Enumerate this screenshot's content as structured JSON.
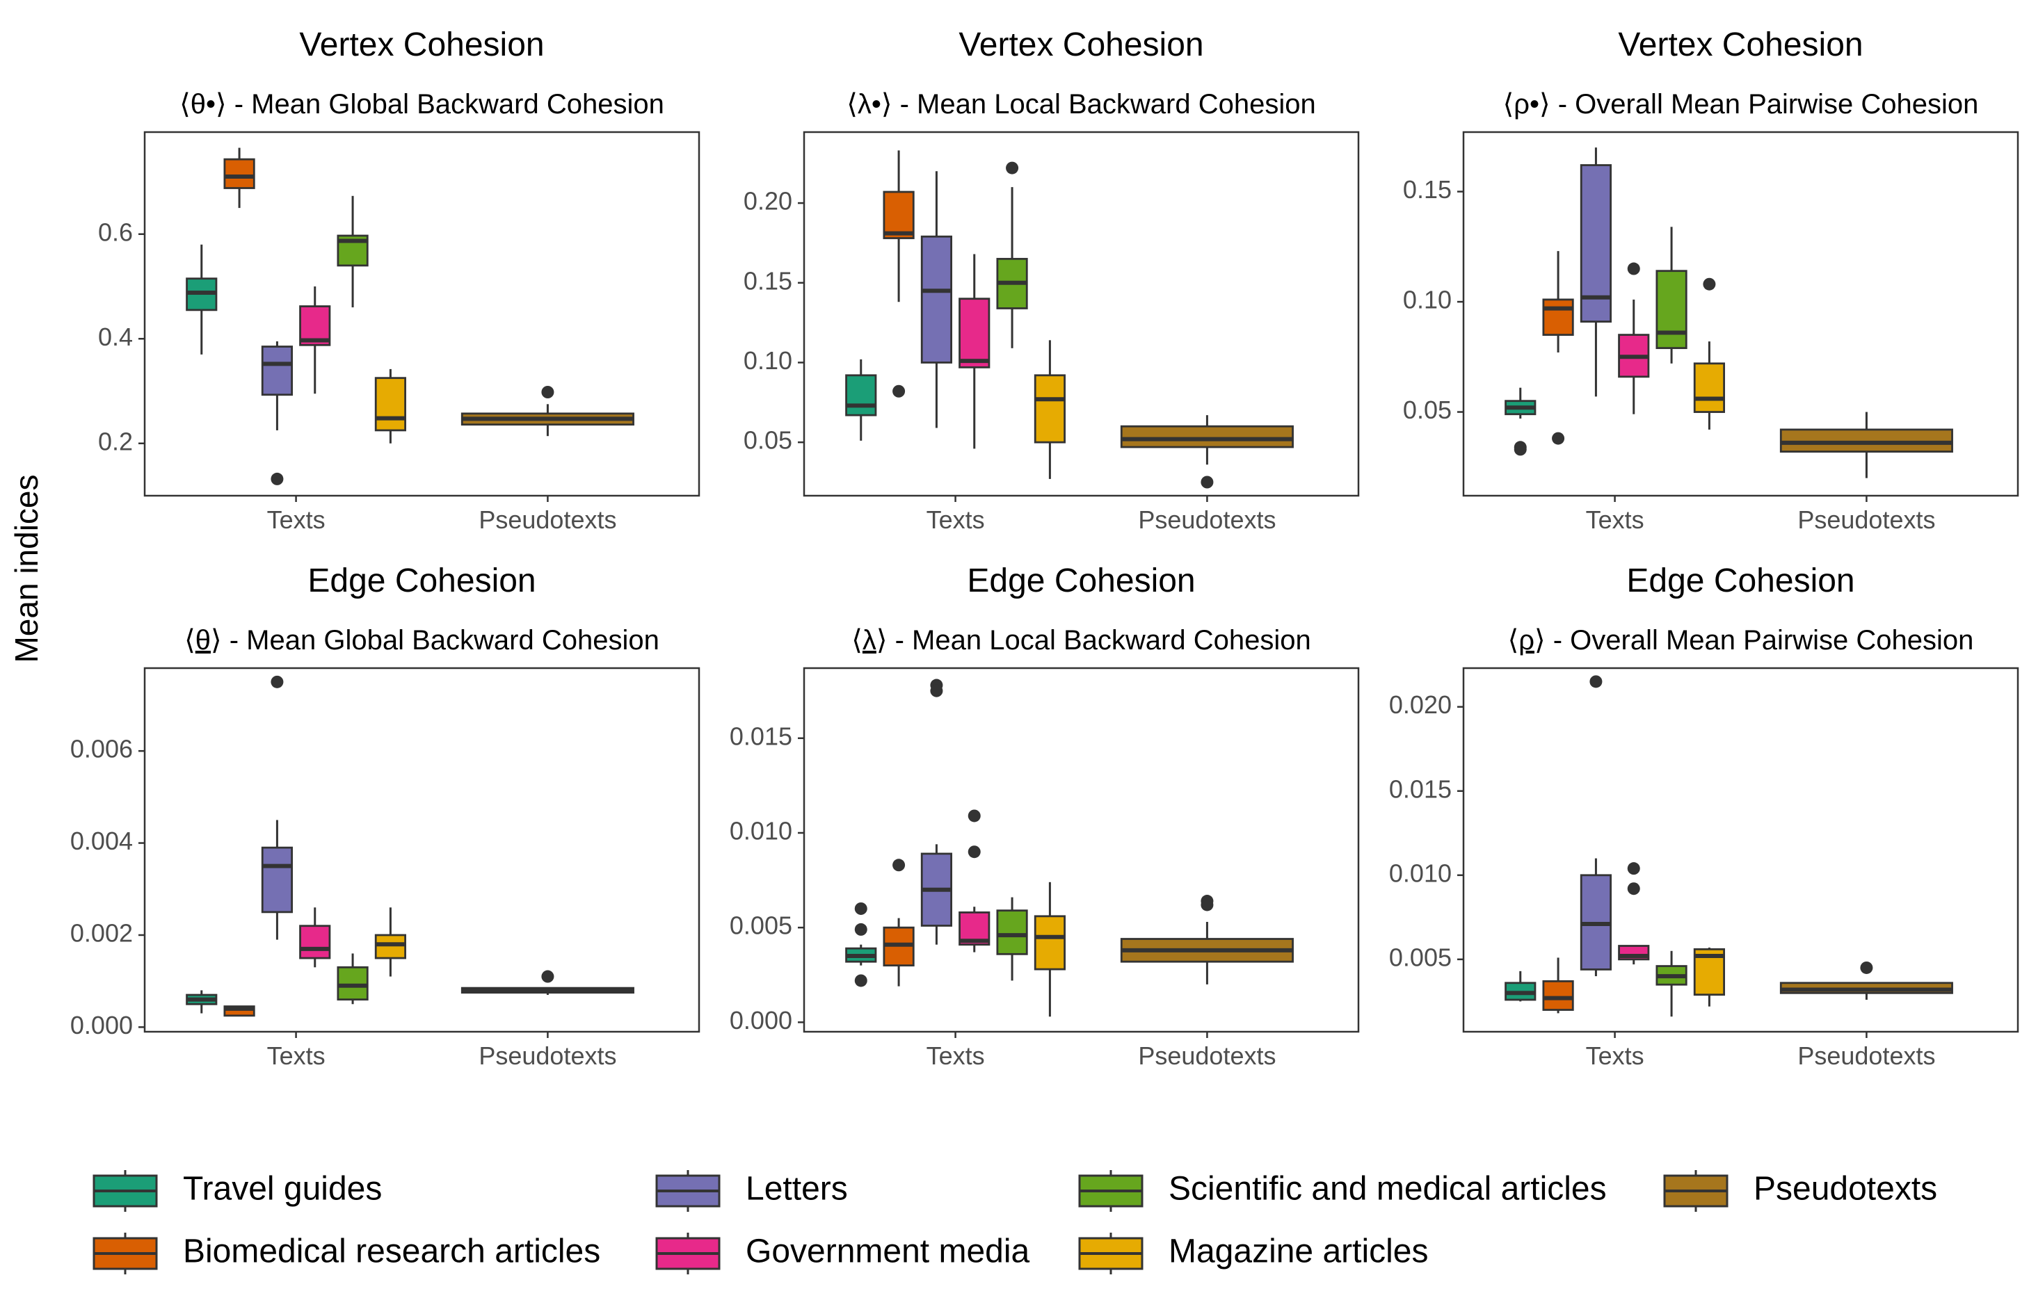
{
  "ylabel": "Mean indices",
  "legend": {
    "placement": "bottom",
    "items": [
      {
        "name": "Travel guides",
        "color": "#1b9e77"
      },
      {
        "name": "Biomedical research articles",
        "color": "#d95f02"
      },
      {
        "name": "Letters",
        "color": "#7570b3"
      },
      {
        "name": "Government media",
        "color": "#e7298a"
      },
      {
        "name": "Scientific and medical articles",
        "color": "#66a61e"
      },
      {
        "name": "Magazine articles",
        "color": "#e6ab02"
      },
      {
        "name": "Pseudotexts",
        "color": "#a6761d"
      }
    ]
  },
  "chart_data": [
    {
      "type": "boxplot",
      "title": "Vertex Cohesion",
      "subtitle": "⟨θ•⟩ - Mean Global Backward Cohesion",
      "categories": [
        "Texts",
        "Pseudotexts"
      ],
      "ylim": [
        0.1,
        0.795
      ],
      "yticks": [
        {
          "value": 0.2,
          "label": "0.2"
        },
        {
          "value": 0.4,
          "label": "0.4"
        },
        {
          "value": 0.6,
          "label": "0.6"
        }
      ],
      "grid": false,
      "series": [
        {
          "name": "Travel guides",
          "category": "Texts",
          "min": 0.37,
          "q1": 0.455,
          "median": 0.488,
          "q3": 0.515,
          "max": 0.58,
          "outliers": []
        },
        {
          "name": "Biomedical research articles",
          "category": "Texts",
          "min": 0.65,
          "q1": 0.688,
          "median": 0.71,
          "q3": 0.743,
          "max": 0.765,
          "outliers": []
        },
        {
          "name": "Letters",
          "category": "Texts",
          "min": 0.225,
          "q1": 0.293,
          "median": 0.352,
          "q3": 0.385,
          "max": 0.395,
          "outliers": [
            0.132
          ]
        },
        {
          "name": "Government media",
          "category": "Texts",
          "min": 0.295,
          "q1": 0.388,
          "median": 0.397,
          "q3": 0.462,
          "max": 0.5,
          "outliers": []
        },
        {
          "name": "Scientific and medical articles",
          "category": "Texts",
          "min": 0.46,
          "q1": 0.54,
          "median": 0.587,
          "q3": 0.597,
          "max": 0.673,
          "outliers": []
        },
        {
          "name": "Magazine articles",
          "category": "Texts",
          "min": 0.2,
          "q1": 0.225,
          "median": 0.248,
          "q3": 0.325,
          "max": 0.342,
          "outliers": []
        },
        {
          "name": "Pseudotexts",
          "category": "Pseudotexts",
          "min": 0.214,
          "q1": 0.236,
          "median": 0.247,
          "q3": 0.257,
          "max": 0.275,
          "outliers": [
            0.298
          ]
        }
      ]
    },
    {
      "type": "boxplot",
      "title": "Vertex Cohesion",
      "subtitle": "⟨λ•⟩ - Mean Local Backward Cohesion",
      "categories": [
        "Texts",
        "Pseudotexts"
      ],
      "ylim": [
        0.0165,
        0.2445
      ],
      "yticks": [
        {
          "value": 0.05,
          "label": "0.05"
        },
        {
          "value": 0.1,
          "label": "0.10"
        },
        {
          "value": 0.15,
          "label": "0.15"
        },
        {
          "value": 0.2,
          "label": "0.20"
        }
      ],
      "grid": false,
      "series": [
        {
          "name": "Travel guides",
          "category": "Texts",
          "min": 0.051,
          "q1": 0.067,
          "median": 0.073,
          "q3": 0.092,
          "max": 0.102,
          "outliers": []
        },
        {
          "name": "Biomedical research articles",
          "category": "Texts",
          "min": 0.138,
          "q1": 0.178,
          "median": 0.181,
          "q3": 0.207,
          "max": 0.233,
          "outliers": [
            0.082
          ]
        },
        {
          "name": "Letters",
          "category": "Texts",
          "min": 0.059,
          "q1": 0.1,
          "median": 0.145,
          "q3": 0.179,
          "max": 0.22,
          "outliers": []
        },
        {
          "name": "Government media",
          "category": "Texts",
          "min": 0.046,
          "q1": 0.097,
          "median": 0.101,
          "q3": 0.14,
          "max": 0.168,
          "outliers": []
        },
        {
          "name": "Scientific and medical articles",
          "category": "Texts",
          "min": 0.109,
          "q1": 0.134,
          "median": 0.15,
          "q3": 0.165,
          "max": 0.21,
          "outliers": [
            0.222
          ]
        },
        {
          "name": "Magazine articles",
          "category": "Texts",
          "min": 0.027,
          "q1": 0.05,
          "median": 0.077,
          "q3": 0.092,
          "max": 0.114,
          "outliers": []
        },
        {
          "name": "Pseudotexts",
          "category": "Pseudotexts",
          "min": 0.036,
          "q1": 0.047,
          "median": 0.052,
          "q3": 0.06,
          "max": 0.067,
          "outliers": [
            0.025
          ]
        }
      ]
    },
    {
      "type": "boxplot",
      "title": "Vertex Cohesion",
      "subtitle": "⟨ρ•⟩ - Overall Mean Pairwise Cohesion",
      "categories": [
        "Texts",
        "Pseudotexts"
      ],
      "ylim": [
        0.012,
        0.177
      ],
      "yticks": [
        {
          "value": 0.05,
          "label": "0.05"
        },
        {
          "value": 0.1,
          "label": "0.10"
        },
        {
          "value": 0.15,
          "label": "0.15"
        }
      ],
      "grid": false,
      "series": [
        {
          "name": "Travel guides",
          "category": "Texts",
          "min": 0.047,
          "q1": 0.049,
          "median": 0.052,
          "q3": 0.055,
          "max": 0.061,
          "outliers": [
            0.034,
            0.033
          ]
        },
        {
          "name": "Biomedical research articles",
          "category": "Texts",
          "min": 0.077,
          "q1": 0.085,
          "median": 0.097,
          "q3": 0.101,
          "max": 0.123,
          "outliers": [
            0.038
          ]
        },
        {
          "name": "Letters",
          "category": "Texts",
          "min": 0.057,
          "q1": 0.091,
          "median": 0.102,
          "q3": 0.162,
          "max": 0.17,
          "outliers": []
        },
        {
          "name": "Government media",
          "category": "Texts",
          "min": 0.049,
          "q1": 0.066,
          "median": 0.075,
          "q3": 0.085,
          "max": 0.101,
          "outliers": [
            0.115
          ]
        },
        {
          "name": "Scientific and medical articles",
          "category": "Texts",
          "min": 0.072,
          "q1": 0.079,
          "median": 0.086,
          "q3": 0.114,
          "max": 0.134,
          "outliers": []
        },
        {
          "name": "Magazine articles",
          "category": "Texts",
          "min": 0.042,
          "q1": 0.05,
          "median": 0.056,
          "q3": 0.072,
          "max": 0.082,
          "outliers": [
            0.108
          ]
        },
        {
          "name": "Pseudotexts",
          "category": "Pseudotexts",
          "min": 0.02,
          "q1": 0.032,
          "median": 0.036,
          "q3": 0.042,
          "max": 0.05,
          "outliers": []
        }
      ]
    },
    {
      "type": "boxplot",
      "title": "Edge Cohesion",
      "subtitle": "⟨θ⟩ - Mean Global Backward Cohesion",
      "subtitle_underline_char": "θ",
      "categories": [
        "Texts",
        "Pseudotexts"
      ],
      "ylim": [
        -0.0001,
        0.0078
      ],
      "yticks": [
        {
          "value": 0,
          "label": "0.000"
        },
        {
          "value": 0.002,
          "label": "0.002"
        },
        {
          "value": 0.004,
          "label": "0.004"
        },
        {
          "value": 0.006,
          "label": "0.006"
        }
      ],
      "grid": false,
      "series": [
        {
          "name": "Travel guides",
          "category": "Texts",
          "min": 0.0003,
          "q1": 0.0005,
          "median": 0.0006,
          "q3": 0.0007,
          "max": 0.0008,
          "outliers": []
        },
        {
          "name": "Biomedical research articles",
          "category": "Texts",
          "min": 0.00025,
          "q1": 0.00025,
          "median": 0.0004,
          "q3": 0.00045,
          "max": 0.00045,
          "outliers": []
        },
        {
          "name": "Letters",
          "category": "Texts",
          "min": 0.0019,
          "q1": 0.0025,
          "median": 0.0035,
          "q3": 0.0039,
          "max": 0.0045,
          "outliers": [
            0.0075
          ]
        },
        {
          "name": "Government media",
          "category": "Texts",
          "min": 0.0013,
          "q1": 0.0015,
          "median": 0.0017,
          "q3": 0.0022,
          "max": 0.0026,
          "outliers": []
        },
        {
          "name": "Scientific and medical articles",
          "category": "Texts",
          "min": 0.0005,
          "q1": 0.0006,
          "median": 0.0009,
          "q3": 0.0013,
          "max": 0.0016,
          "outliers": []
        },
        {
          "name": "Magazine articles",
          "category": "Texts",
          "min": 0.0011,
          "q1": 0.0015,
          "median": 0.0018,
          "q3": 0.002,
          "max": 0.0026,
          "outliers": []
        },
        {
          "name": "Pseudotexts",
          "category": "Pseudotexts",
          "min": 0.0007,
          "q1": 0.00075,
          "median": 0.0008,
          "q3": 0.00085,
          "max": 0.00085,
          "outliers": [
            0.0011
          ]
        }
      ]
    },
    {
      "type": "boxplot",
      "title": "Edge Cohesion",
      "subtitle": "⟨λ⟩ - Mean Local Backward Cohesion",
      "subtitle_underline_char": "λ",
      "categories": [
        "Texts",
        "Pseudotexts"
      ],
      "ylim": [
        -0.0005,
        0.0187
      ],
      "yticks": [
        {
          "value": 0,
          "label": "0.000"
        },
        {
          "value": 0.005,
          "label": "0.005"
        },
        {
          "value": 0.01,
          "label": "0.010"
        },
        {
          "value": 0.015,
          "label": "0.015"
        }
      ],
      "grid": false,
      "series": [
        {
          "name": "Travel guides",
          "category": "Texts",
          "min": 0.003,
          "q1": 0.0032,
          "median": 0.0035,
          "q3": 0.0039,
          "max": 0.0041,
          "outliers": [
            0.006,
            0.0049,
            0.0022
          ]
        },
        {
          "name": "Biomedical research articles",
          "category": "Texts",
          "min": 0.0019,
          "q1": 0.003,
          "median": 0.0041,
          "q3": 0.005,
          "max": 0.0055,
          "outliers": [
            0.0083
          ]
        },
        {
          "name": "Letters",
          "category": "Texts",
          "min": 0.0041,
          "q1": 0.0051,
          "median": 0.007,
          "q3": 0.0089,
          "max": 0.0094,
          "outliers": [
            0.0178,
            0.0175
          ]
        },
        {
          "name": "Government media",
          "category": "Texts",
          "min": 0.0037,
          "q1": 0.0041,
          "median": 0.0043,
          "q3": 0.0058,
          "max": 0.0061,
          "outliers": [
            0.0109,
            0.009
          ]
        },
        {
          "name": "Scientific and medical articles",
          "category": "Texts",
          "min": 0.0022,
          "q1": 0.0036,
          "median": 0.0046,
          "q3": 0.0059,
          "max": 0.0066,
          "outliers": []
        },
        {
          "name": "Magazine articles",
          "category": "Texts",
          "min": 0.0003,
          "q1": 0.0028,
          "median": 0.0045,
          "q3": 0.0056,
          "max": 0.0074,
          "outliers": []
        },
        {
          "name": "Pseudotexts",
          "category": "Pseudotexts",
          "min": 0.002,
          "q1": 0.0032,
          "median": 0.0038,
          "q3": 0.0044,
          "max": 0.0053,
          "outliers": [
            0.0062,
            0.0064
          ]
        }
      ]
    },
    {
      "type": "boxplot",
      "title": "Edge Cohesion",
      "subtitle": "⟨ρ⟩ - Overall Mean Pairwise Cohesion",
      "subtitle_underline_char": "ρ",
      "categories": [
        "Texts",
        "Pseudotexts"
      ],
      "ylim": [
        0.0007,
        0.0223
      ],
      "yticks": [
        {
          "value": 0.005,
          "label": "0.005"
        },
        {
          "value": 0.01,
          "label": "0.010"
        },
        {
          "value": 0.015,
          "label": "0.015"
        },
        {
          "value": 0.02,
          "label": "0.020"
        }
      ],
      "grid": false,
      "series": [
        {
          "name": "Travel guides",
          "category": "Texts",
          "min": 0.0025,
          "q1": 0.0026,
          "median": 0.003,
          "q3": 0.0036,
          "max": 0.0043,
          "outliers": []
        },
        {
          "name": "Biomedical research articles",
          "category": "Texts",
          "min": 0.0018,
          "q1": 0.002,
          "median": 0.0027,
          "q3": 0.0037,
          "max": 0.0051,
          "outliers": []
        },
        {
          "name": "Letters",
          "category": "Texts",
          "min": 0.004,
          "q1": 0.0044,
          "median": 0.0071,
          "q3": 0.01,
          "max": 0.011,
          "outliers": [
            0.0215
          ]
        },
        {
          "name": "Government media",
          "category": "Texts",
          "min": 0.0047,
          "q1": 0.005,
          "median": 0.0052,
          "q3": 0.0058,
          "max": 0.0058,
          "outliers": [
            0.0104,
            0.0092
          ]
        },
        {
          "name": "Scientific and medical articles",
          "category": "Texts",
          "min": 0.0016,
          "q1": 0.0035,
          "median": 0.004,
          "q3": 0.0046,
          "max": 0.0055,
          "outliers": []
        },
        {
          "name": "Magazine articles",
          "category": "Texts",
          "min": 0.0022,
          "q1": 0.0029,
          "median": 0.0052,
          "q3": 0.0056,
          "max": 0.0057,
          "outliers": []
        },
        {
          "name": "Pseudotexts",
          "category": "Pseudotexts",
          "min": 0.0026,
          "q1": 0.003,
          "median": 0.0032,
          "q3": 0.0036,
          "max": 0.0036,
          "outliers": [
            0.0045
          ]
        }
      ]
    }
  ]
}
